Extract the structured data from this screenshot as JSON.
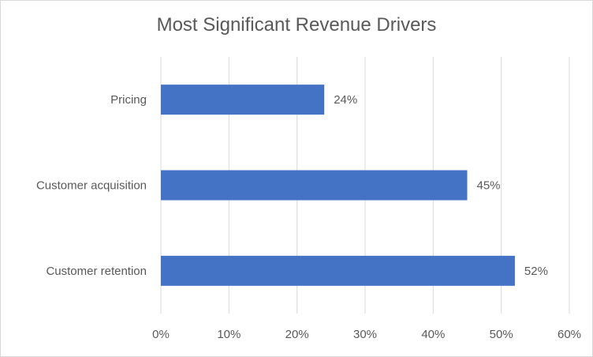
{
  "chart_data": {
    "type": "bar",
    "orientation": "horizontal",
    "title": "Most Significant Revenue Drivers",
    "categories": [
      "Pricing",
      "Customer acquisition",
      "Customer retention"
    ],
    "values": [
      24,
      45,
      52
    ],
    "value_labels": [
      "24%",
      "45%",
      "52%"
    ],
    "xlim": [
      0,
      60
    ],
    "x_ticks": [
      "0%",
      "10%",
      "20%",
      "30%",
      "40%",
      "50%",
      "60%"
    ],
    "xlabel": "",
    "ylabel": "",
    "grid": "vertical",
    "legend": "none",
    "bar_color": "#4472C4",
    "grid_color": "#D9D9D9"
  }
}
